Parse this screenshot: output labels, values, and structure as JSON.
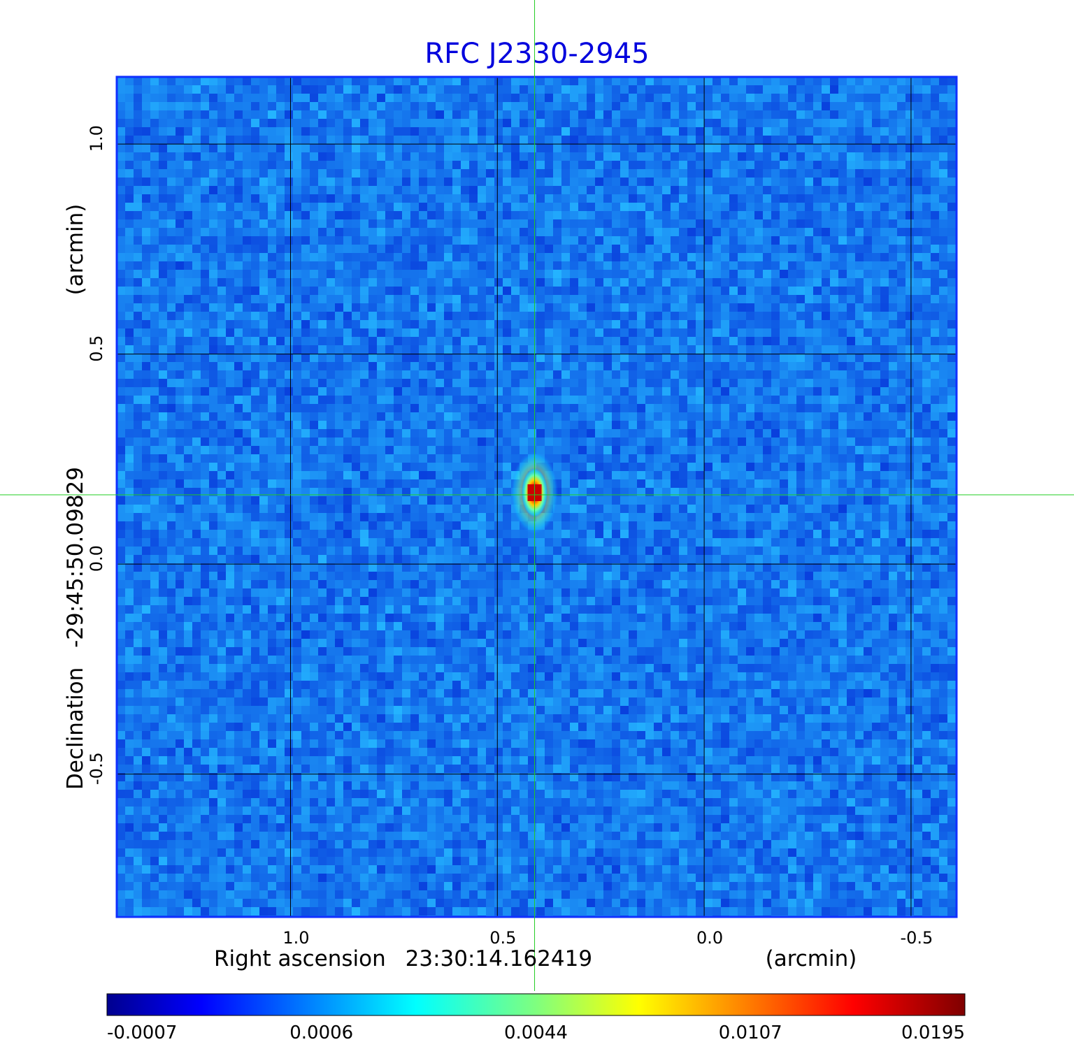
{
  "chart_data": {
    "type": "heatmap",
    "title": "RFC J2330-2945",
    "xlabel": {
      "prefix": "Right ascension",
      "center": "23:30:14.162419",
      "unit": "(arcmin)"
    },
    "ylabel": {
      "prefix": "Declination",
      "center": "-29:45:50.09829",
      "unit": "(arcmin)"
    },
    "xlim": [
      1.42,
      -0.61
    ],
    "ylim": [
      -0.84,
      1.16
    ],
    "x_ticks": [
      {
        "value": 1.0,
        "label": "1.0"
      },
      {
        "value": 0.5,
        "label": "0.5"
      },
      {
        "value": 0.0,
        "label": "0.0"
      },
      {
        "value": -0.5,
        "label": "-0.5"
      }
    ],
    "y_ticks": [
      {
        "value": 1.0,
        "label": "1.0"
      },
      {
        "value": 0.5,
        "label": "0.5"
      },
      {
        "value": 0.0,
        "label": "0.0"
      },
      {
        "value": -0.5,
        "label": "-0.5"
      }
    ],
    "grid": true,
    "crosshair": {
      "x": 0.41,
      "y": 0.165,
      "color": "#22cc22"
    },
    "source": {
      "x": 0.41,
      "y": 0.17,
      "peak": 0.0195
    },
    "colormap": "jet",
    "colorbar": {
      "ticks": [
        "-0.0007",
        "0.0006",
        "0.0044",
        "0.0107",
        "0.0195"
      ]
    },
    "colors": {
      "title": "#0000dd",
      "grid": "#000000",
      "frame": "#1030ff",
      "crosshair": "#22cc22"
    }
  }
}
